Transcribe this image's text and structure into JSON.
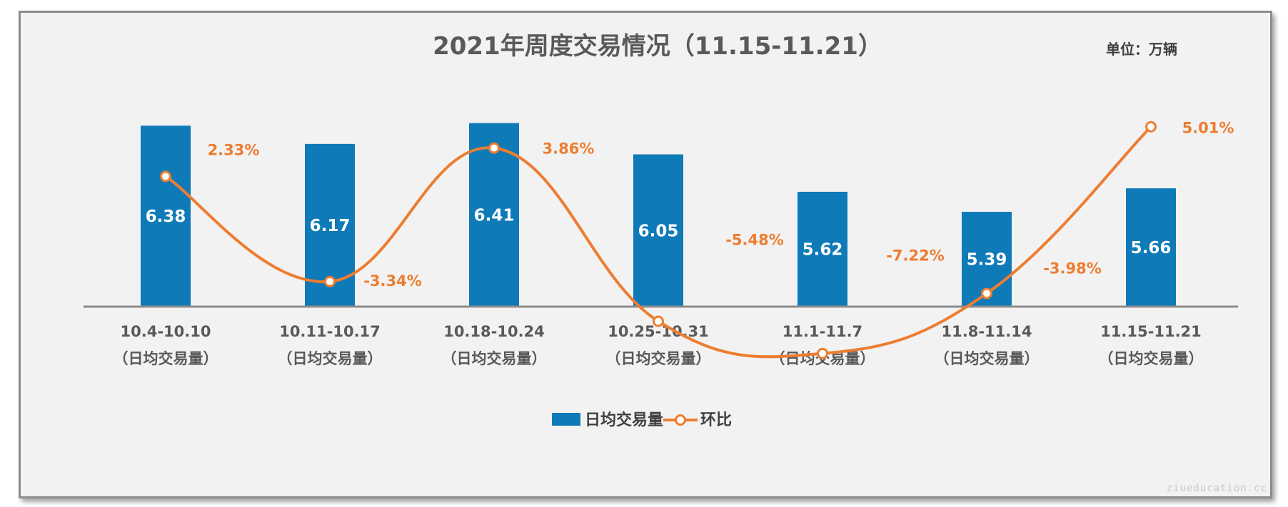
{
  "unit_label": "单位：万辆",
  "watermark": "ziueducation.cc",
  "chart_data": {
    "type": "bar",
    "title": "2021年周度交易情况（11.15-11.21）",
    "categories": [
      "10.4-10.10",
      "10.11-10.17",
      "10.18-10.24",
      "10.25-10.31",
      "11.1-11.7",
      "11.8-11.14",
      "11.15-11.21"
    ],
    "category_sublabel": "（日均交易量）",
    "series": [
      {
        "name": "日均交易量",
        "type": "bar",
        "values": [
          6.38,
          6.17,
          6.41,
          6.05,
          5.62,
          5.39,
          5.66
        ],
        "labels": [
          "6.38",
          "6.17",
          "6.41",
          "6.05",
          "5.62",
          "5.39",
          "5.66"
        ],
        "color": "#0f7ab8"
      },
      {
        "name": "环比",
        "type": "line",
        "values": [
          2.33,
          -3.34,
          3.86,
          -5.48,
          -7.22,
          -3.98,
          5.01
        ],
        "labels": [
          "2.33%",
          "-3.34%",
          "3.86%",
          "-5.48%",
          "-7.22%",
          "-3.98%",
          "5.01%"
        ],
        "color": "#ed7d31",
        "smooth": true
      }
    ],
    "legend_position": "bottom-center",
    "grid": false
  }
}
